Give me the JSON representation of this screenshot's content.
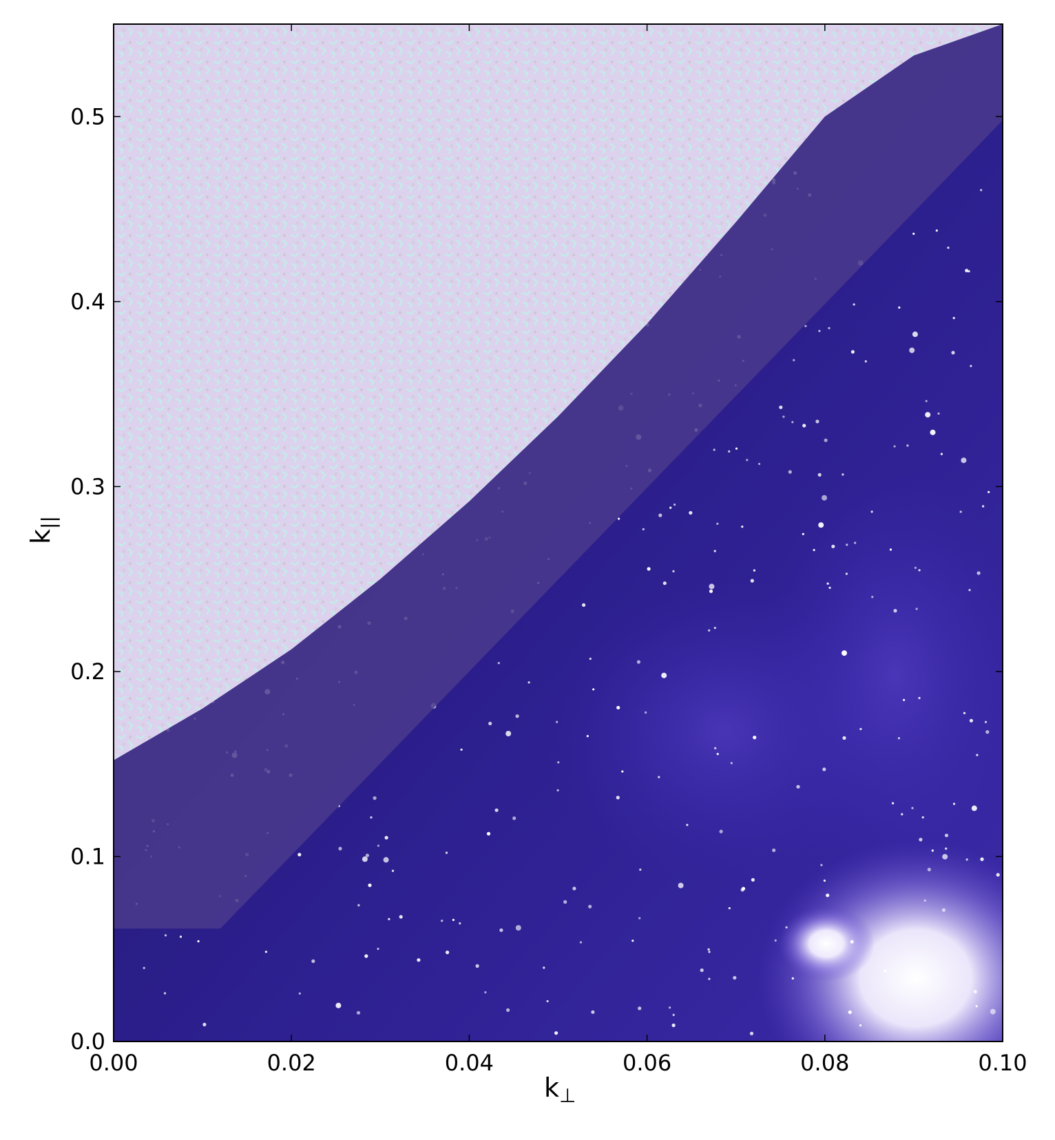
{
  "chart_data": {
    "type": "area",
    "title": "",
    "xlabel": "k",
    "xlabel_sub": "⊥",
    "ylabel": "k",
    "ylabel_sub": "||",
    "xlim": [
      0.0,
      0.1
    ],
    "ylim": [
      0.0,
      0.55
    ],
    "xticks": [
      0.0,
      0.02,
      0.04,
      0.06,
      0.08,
      0.1
    ],
    "xtick_labels": [
      "0.00",
      "0.02",
      "0.04",
      "0.06",
      "0.08",
      "0.10"
    ],
    "yticks": [
      0.0,
      0.1,
      0.2,
      0.3,
      0.4,
      0.5
    ],
    "ytick_labels": [
      "0.0",
      "0.1",
      "0.2",
      "0.3",
      "0.4",
      "0.5"
    ],
    "grid": false,
    "regions": [
      {
        "role": "upper-region",
        "fill": "#ddd2ee",
        "boundary": [
          {
            "x": 0.0,
            "y": 0.152
          },
          {
            "x": 0.01,
            "y": 0.18
          },
          {
            "x": 0.02,
            "y": 0.212
          },
          {
            "x": 0.03,
            "y": 0.25
          },
          {
            "x": 0.04,
            "y": 0.292
          },
          {
            "x": 0.05,
            "y": 0.338
          },
          {
            "x": 0.06,
            "y": 0.388
          },
          {
            "x": 0.07,
            "y": 0.443
          },
          {
            "x": 0.08,
            "y": 0.5
          },
          {
            "x": 0.09,
            "y": 0.533
          },
          {
            "x": 0.1,
            "y": 0.55
          }
        ]
      },
      {
        "role": "middle-band",
        "fill": "#4a3a8c",
        "boundary": [
          {
            "x": 0.0,
            "y": 0.061
          },
          {
            "x": 0.012,
            "y": 0.061
          },
          {
            "x": 0.1,
            "y": 0.498
          }
        ]
      },
      {
        "role": "lower-region",
        "fill": "#2a1d82"
      }
    ],
    "colors": {
      "upper": "#ddd2ee",
      "upper_speckle": "#b8f5e6",
      "band": "#4a3a8c",
      "lower_dark": "#1e1560",
      "lower_mid": "#3a28b0",
      "glow": "#ffffff"
    }
  }
}
